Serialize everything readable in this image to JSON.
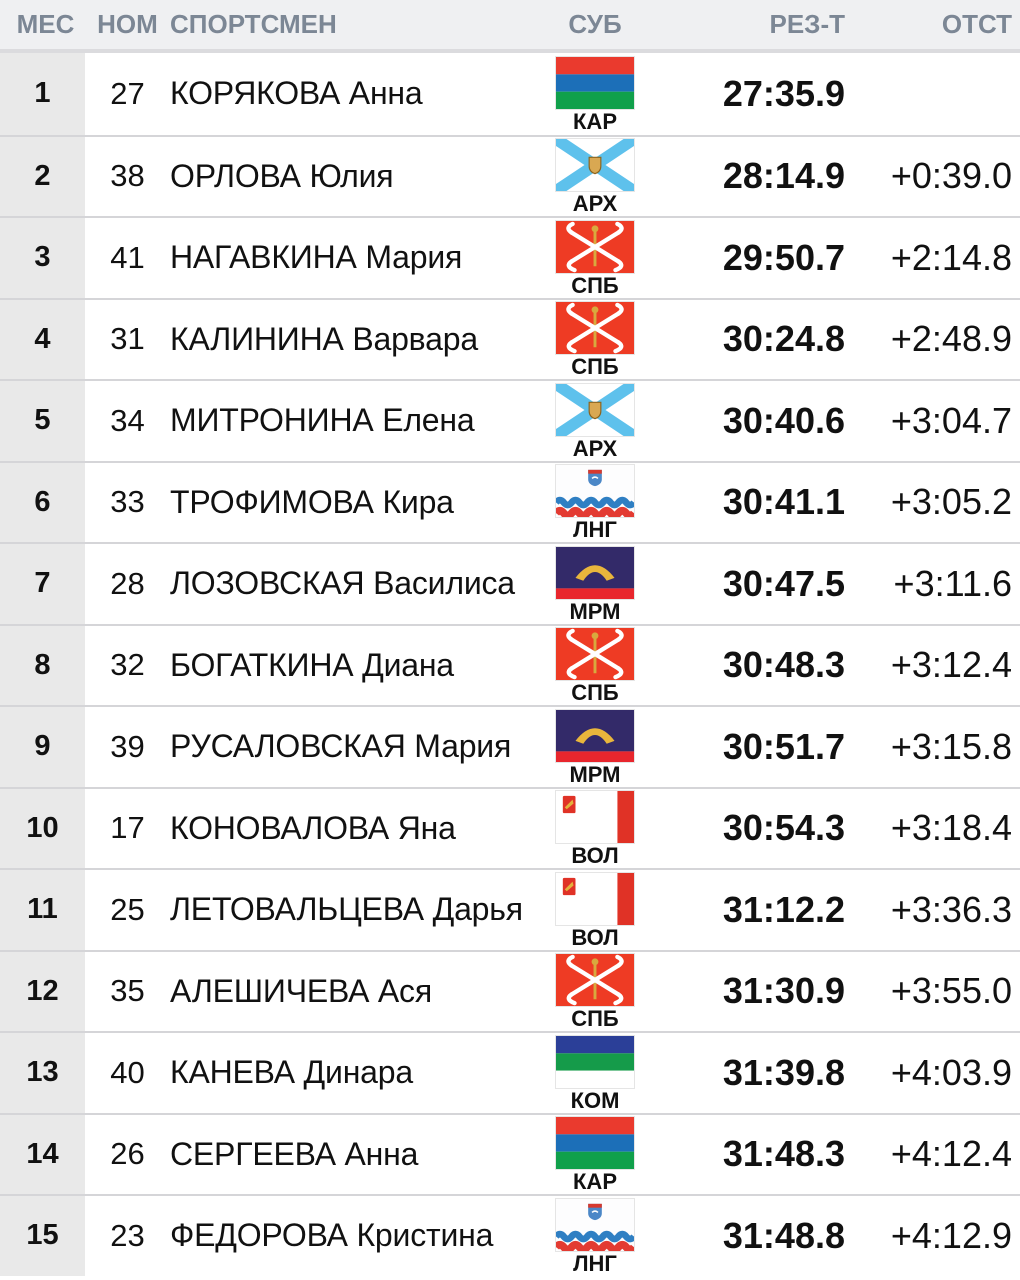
{
  "table": {
    "columns": [
      {
        "id": "place",
        "label": "МЕС"
      },
      {
        "id": "bib",
        "label": "НОМ"
      },
      {
        "id": "athlete",
        "label": "СПОРТСМЕН"
      },
      {
        "id": "region",
        "label": "СУБ"
      },
      {
        "id": "result",
        "label": "РЕЗ-Т"
      },
      {
        "id": "gap",
        "label": "ОТСТ"
      }
    ],
    "rows": [
      {
        "place": "1",
        "bib": "27",
        "name": "КОРЯКОВА Анна",
        "region": "КАР",
        "flag": "kar",
        "result": "27:35.9",
        "gap": ""
      },
      {
        "place": "2",
        "bib": "38",
        "name": "ОРЛОВА Юлия",
        "region": "АРХ",
        "flag": "arh",
        "result": "28:14.9",
        "gap": "+0:39.0"
      },
      {
        "place": "3",
        "bib": "41",
        "name": "НАГАВКИНА Мария",
        "region": "СПБ",
        "flag": "spb",
        "result": "29:50.7",
        "gap": "+2:14.8"
      },
      {
        "place": "4",
        "bib": "31",
        "name": "КАЛИНИНА Варвара",
        "region": "СПБ",
        "flag": "spb",
        "result": "30:24.8",
        "gap": "+2:48.9"
      },
      {
        "place": "5",
        "bib": "34",
        "name": "МИТРОНИНА Елена",
        "region": "АРХ",
        "flag": "arh",
        "result": "30:40.6",
        "gap": "+3:04.7"
      },
      {
        "place": "6",
        "bib": "33",
        "name": "ТРОФИМОВА Кира",
        "region": "ЛНГ",
        "flag": "lng",
        "result": "30:41.1",
        "gap": "+3:05.2"
      },
      {
        "place": "7",
        "bib": "28",
        "name": "ЛОЗОВСКАЯ Василиса",
        "region": "МРМ",
        "flag": "mrm",
        "result": "30:47.5",
        "gap": "+3:11.6"
      },
      {
        "place": "8",
        "bib": "32",
        "name": "БОГАТКИНА Диана",
        "region": "СПБ",
        "flag": "spb",
        "result": "30:48.3",
        "gap": "+3:12.4"
      },
      {
        "place": "9",
        "bib": "39",
        "name": "РУСАЛОВСКАЯ Мария",
        "region": "МРМ",
        "flag": "mrm",
        "result": "30:51.7",
        "gap": "+3:15.8"
      },
      {
        "place": "10",
        "bib": "17",
        "name": "КОНОВАЛОВА Яна",
        "region": "ВОЛ",
        "flag": "vol",
        "result": "30:54.3",
        "gap": "+3:18.4"
      },
      {
        "place": "11",
        "bib": "25",
        "name": "ЛЕТОВАЛЬЦЕВА Дарья",
        "region": "ВОЛ",
        "flag": "vol",
        "result": "31:12.2",
        "gap": "+3:36.3"
      },
      {
        "place": "12",
        "bib": "35",
        "name": "АЛЕШИЧЕВА Ася",
        "region": "СПБ",
        "flag": "spb",
        "result": "31:30.9",
        "gap": "+3:55.0"
      },
      {
        "place": "13",
        "bib": "40",
        "name": "КАНЕВА Динара",
        "region": "КОМ",
        "flag": "kom",
        "result": "31:39.8",
        "gap": "+4:03.9"
      },
      {
        "place": "14",
        "bib": "26",
        "name": "СЕРГЕЕВА Анна",
        "region": "КАР",
        "flag": "kar",
        "result": "31:48.3",
        "gap": "+4:12.4"
      },
      {
        "place": "15",
        "bib": "23",
        "name": "ФЕДОРОВА Кристина",
        "region": "ЛНГ",
        "flag": "lng",
        "result": "31:48.8",
        "gap": "+4:12.9"
      }
    ]
  },
  "colors": {
    "header_bg": "#eff0f2",
    "header_text": "#7c8795",
    "header_divider": "#dbdbde",
    "place_col_bg": "#e9e9e9",
    "row_divider": "#d5d5d8",
    "text": "#111111",
    "flags": {
      "kar": {
        "red": "#ea3a2e",
        "blue": "#1c6fb8",
        "green": "#10a04b"
      },
      "arh": {
        "white": "#ffffff",
        "cross": "#5ec1ec",
        "emblem": "#d9a852",
        "emblem_border": "#8a6420"
      },
      "spb": {
        "field": "#ee3b24",
        "anchor": "#ffffff",
        "scepter": "#d8a93e"
      },
      "lng": {
        "white": "#fdfdfe",
        "wave_blue": "#2f7fc3",
        "wave_red": "#e33b32",
        "shield": "#4b87c7",
        "shield_red": "#d6392e"
      },
      "mrm": {
        "field": "#332a69",
        "gold": "#e9b63c",
        "red": "#e8262d"
      },
      "vol": {
        "white": "#ffffff",
        "red": "#e03226",
        "emblem_gold": "#e3b23c"
      },
      "kom": {
        "blue": "#2b3f98",
        "green": "#159b4a",
        "white": "#ffffff"
      }
    }
  }
}
